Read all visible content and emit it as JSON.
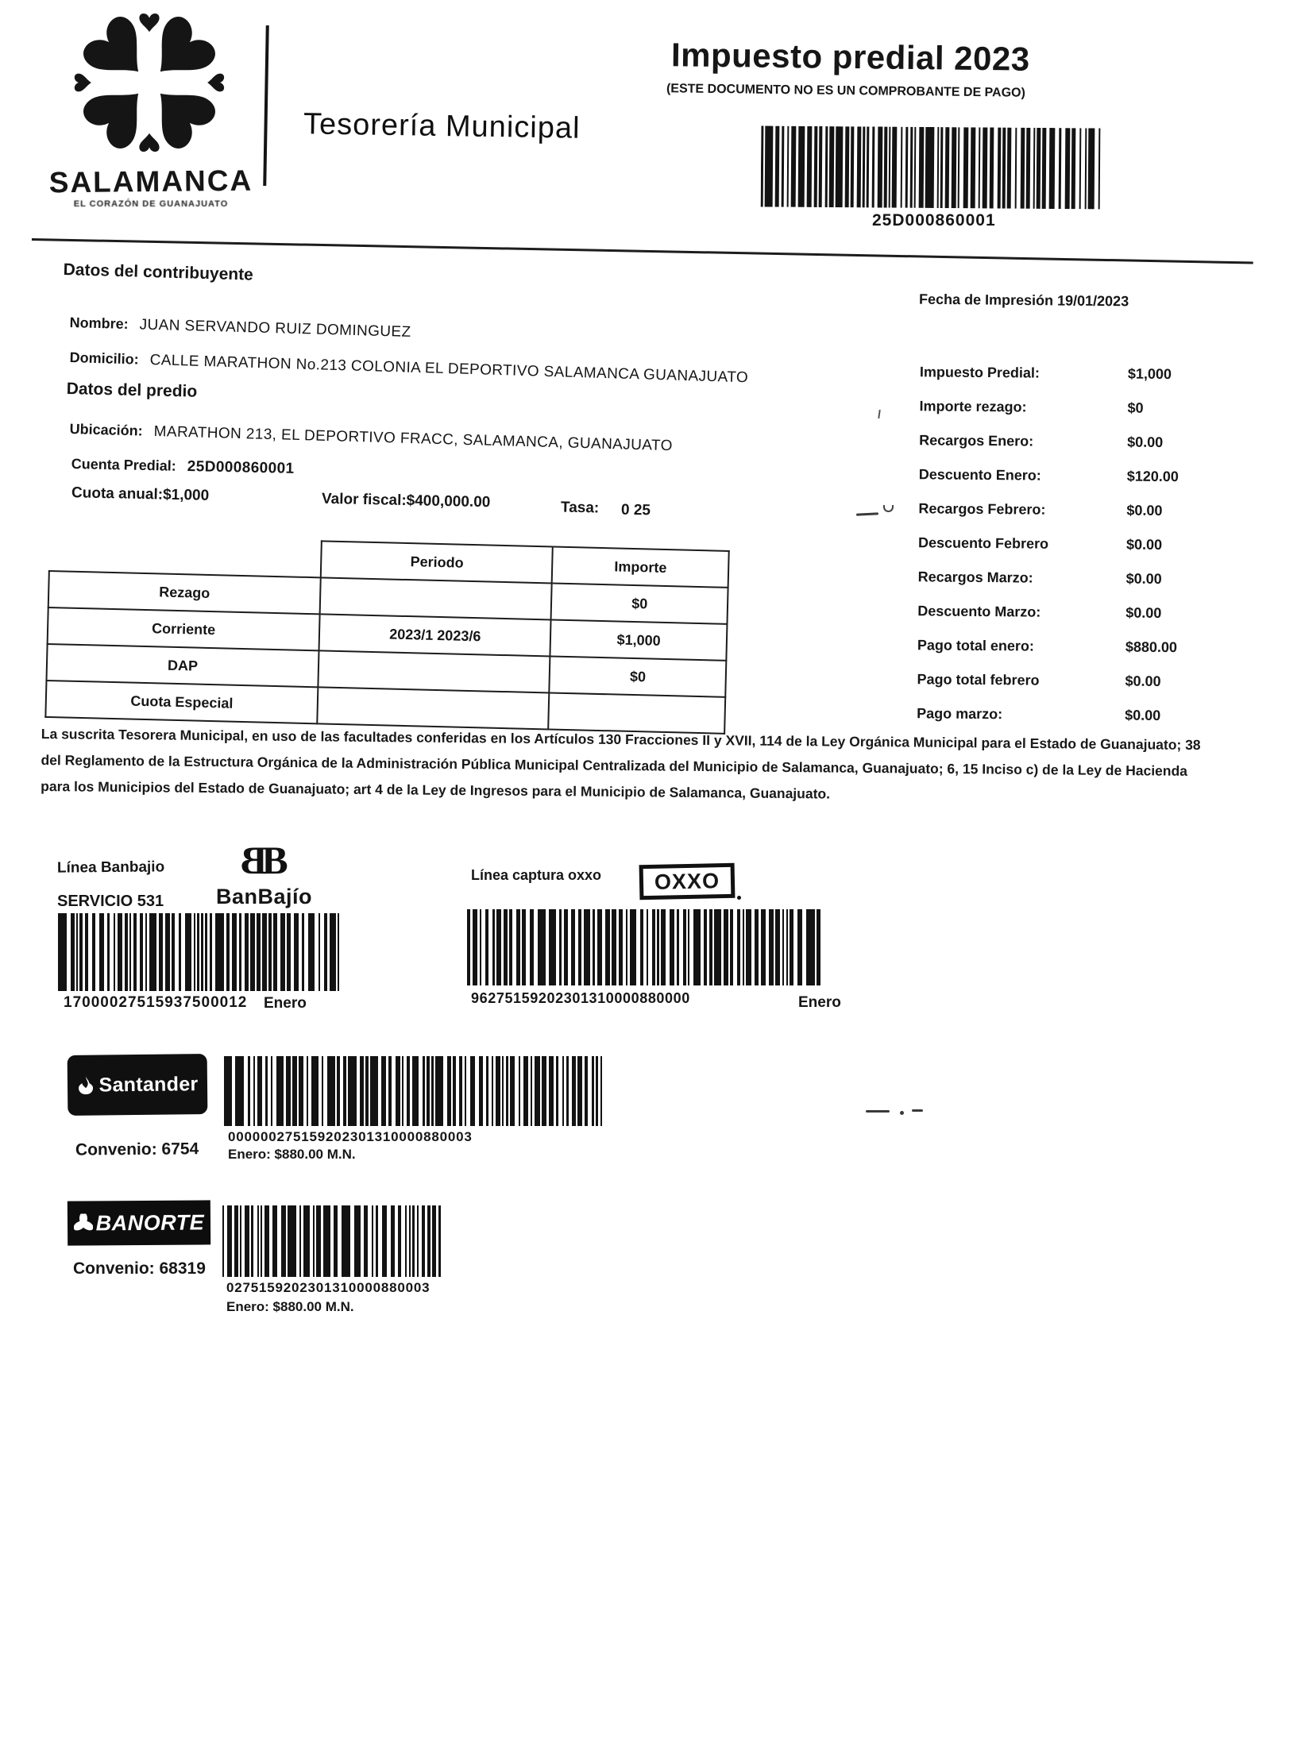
{
  "header": {
    "brand_name": "SALAMANCA",
    "brand_tagline": "EL CORAZÓN DE GUANAJUATO",
    "department": "Tesorería Municipal",
    "title": "Impuesto predial 2023",
    "subtitle": "(ESTE DOCUMENTO NO ES UN COMPROBANTE DE PAGO)",
    "account_barcode": "25D000860001"
  },
  "contribuyente": {
    "section_title": "Datos del contribuyente",
    "fecha_impresion": "Fecha de Impresión 19/01/2023",
    "nombre_label": "Nombre:",
    "nombre": "JUAN SERVANDO RUIZ DOMINGUEZ",
    "domicilio_label": "Domicilio:",
    "domicilio": "CALLE MARATHON No.213 COLONIA EL DEPORTIVO SALAMANCA GUANAJUATO"
  },
  "predio": {
    "section_title": "Datos del predio",
    "ubicacion_label": "Ubicación:",
    "ubicacion": "MARATHON 213, EL DEPORTIVO FRACC, SALAMANCA, GUANAJUATO",
    "cuenta_label": "Cuenta Predial:",
    "cuenta": "25D000860001",
    "cuota_anual": "Cuota anual:$1,000",
    "valor_fiscal": "Valor fiscal:$400,000.00",
    "tasa_label": "Tasa:",
    "tasa": "0 25"
  },
  "resumen": {
    "items": [
      {
        "label": "Impuesto Predial:",
        "value": "$1,000"
      },
      {
        "label": "Importe rezago:",
        "value": "$0"
      },
      {
        "label": "Recargos Enero:",
        "value": "$0.00"
      },
      {
        "label": "Descuento Enero:",
        "value": "$120.00"
      },
      {
        "label": "Recargos Febrero:",
        "value": "$0.00"
      },
      {
        "label": "Descuento Febrero",
        "value": "$0.00"
      },
      {
        "label": "Recargos Marzo:",
        "value": "$0.00"
      },
      {
        "label": "Descuento Marzo:",
        "value": "$0.00"
      },
      {
        "label": "Pago total enero:",
        "value": "$880.00"
      },
      {
        "label": "Pago total febrero",
        "value": "$0.00"
      },
      {
        "label": "Pago marzo:",
        "value": "$0.00"
      }
    ]
  },
  "tabla": {
    "col_periodo": "Periodo",
    "col_importe": "Importe",
    "rows": [
      {
        "concepto": "Rezago",
        "periodo": "",
        "importe": "$0"
      },
      {
        "concepto": "Corriente",
        "periodo": "2023/1 2023/6",
        "importe": "$1,000"
      },
      {
        "concepto": "DAP",
        "periodo": "",
        "importe": "$0"
      },
      {
        "concepto": "Cuota Especial",
        "periodo": "",
        "importe": ""
      }
    ]
  },
  "legal": "La suscrita Tesorera Municipal, en uso de las facultades conferidas en los Artículos 130 Fracciones II y XVII, 114 de la Ley Orgánica Municipal para el Estado de Guanajuato; 38 del Reglamento de la Estructura Orgánica de la Administración Pública Municipal Centralizada del Municipio de Salamanca, Guanajuato; 6, 15 Inciso c) de la Ley de Hacienda para los Municipios del Estado de Guanajuato; art 4 de la Ley de Ingresos para el Municipio de Salamanca, Guanajuato.",
  "pagos": {
    "banbajio": {
      "linea_label": "Línea Banbajio",
      "servicio": "SERVICIO 531",
      "logo_monogram": "B",
      "logo_wordmark": "BanBajío",
      "barcode": "17000027515937500012",
      "mes": "Enero"
    },
    "oxxo": {
      "linea_label": "Línea captura oxxo",
      "logo": "OXXO",
      "barcode": "96275159202301310000880000",
      "mes": "Enero"
    },
    "santander": {
      "logo": "Santander",
      "convenio": "Convenio: 6754",
      "barcode": "000000275159202301310000880003",
      "monto": "Enero: $880.00 M.N."
    },
    "banorte": {
      "logo": "BANORTE",
      "convenio": "Convenio: 68319",
      "barcode": "0275159202301310000880003",
      "monto": "Enero: $880.00 M.N."
    }
  }
}
